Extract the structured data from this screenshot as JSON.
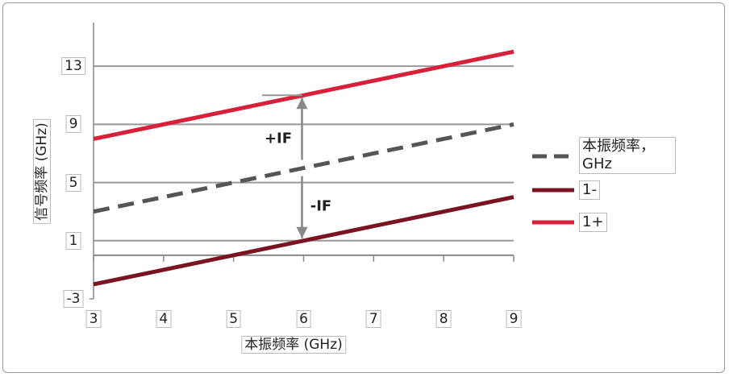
{
  "chart_data": {
    "type": "line",
    "x_label": "本振频率 (GHz)",
    "y_label": "信号频率 (GHz)",
    "x": [
      3,
      4,
      5,
      6,
      7,
      8,
      9
    ],
    "series": [
      {
        "name": "本振频率，GHz",
        "color": "#555555",
        "dash": true,
        "values": [
          3,
          4,
          5,
          6,
          7,
          8,
          9
        ]
      },
      {
        "name": "1-",
        "color": "#7a1322",
        "dash": false,
        "values": [
          -2,
          -1,
          0,
          1,
          2,
          3,
          4
        ]
      },
      {
        "name": "1+",
        "color": "#d8203b",
        "dash": false,
        "values": [
          8,
          9,
          10,
          11,
          12,
          13,
          14
        ]
      }
    ],
    "annotations": [
      "+IF",
      "-IF"
    ],
    "xlim": [
      3,
      9
    ],
    "xticks": [
      3,
      4,
      5,
      6,
      7,
      8,
      9
    ],
    "ylim": [
      -3,
      16
    ],
    "yticks": [
      -3,
      1,
      5,
      9,
      13
    ],
    "grid": true
  }
}
